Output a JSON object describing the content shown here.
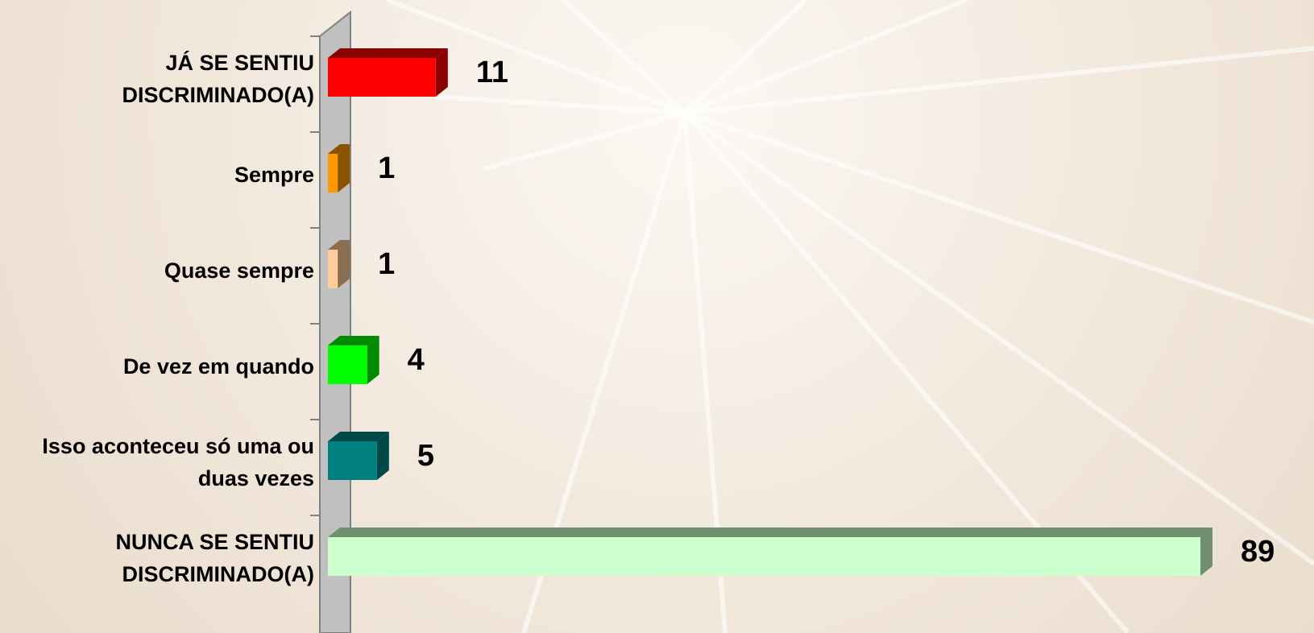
{
  "chart_data": {
    "type": "bar",
    "orientation": "horizontal",
    "categories": [
      "JÁ SE SENTIU DISCRIMINADO(A)",
      "Sempre",
      "Quase sempre",
      "De vez em quando",
      "Isso aconteceu só uma ou duas vezes",
      "NUNCA SE SENTIU DISCRIMINADO(A)"
    ],
    "values": [
      11,
      1,
      1,
      4,
      5,
      89
    ],
    "colors": [
      "#ff0000",
      "#ff9900",
      "#ffcc99",
      "#00ff00",
      "#008080",
      "#ccffcc"
    ],
    "side_colors": [
      "#8b0000",
      "#8b5200",
      "#8b6e50",
      "#008b00",
      "#004848",
      "#6f8f6f"
    ]
  }
}
